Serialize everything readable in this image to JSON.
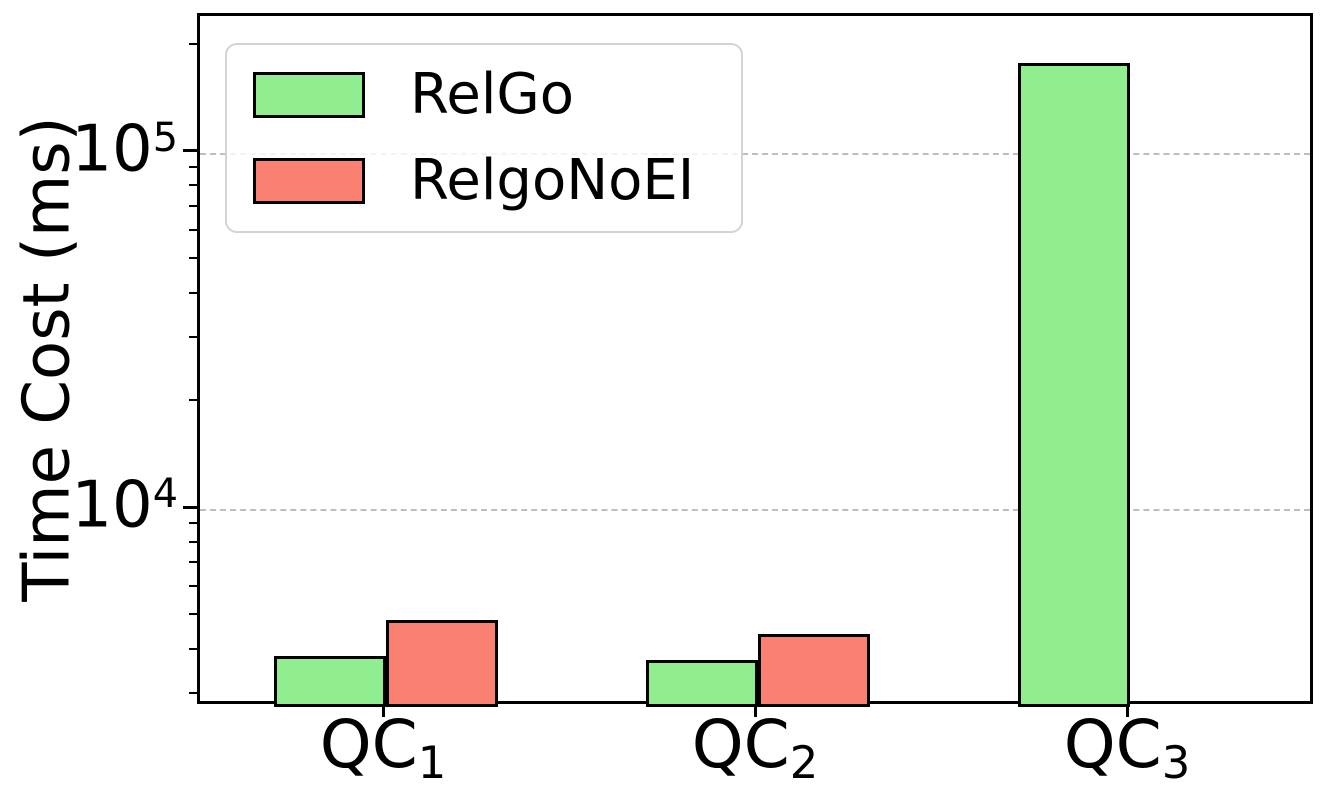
{
  "figure": {
    "background": "#ffffff",
    "axis_color": "#000000",
    "gridline_color": "#bdbdbd"
  },
  "chart_data": {
    "type": "bar",
    "title": "",
    "xlabel": "",
    "ylabel": "Time Cost (ms)",
    "yscale": "log",
    "ylim": [
      2800,
      244000
    ],
    "grid": {
      "axis": "y",
      "which": "major",
      "style": "dashed"
    },
    "categories": [
      {
        "base": "QC",
        "sub": "1"
      },
      {
        "base": "QC",
        "sub": "2"
      },
      {
        "base": "QC",
        "sub": "3"
      }
    ],
    "yticks": [
      {
        "base": "10",
        "exp": "4",
        "value": 10000
      },
      {
        "base": "10",
        "exp": "5",
        "value": 100000
      }
    ],
    "series": [
      {
        "name": "RelGo",
        "color": "#90ee90",
        "edge_color": "#000000",
        "values": [
          3900,
          3800,
          180000
        ]
      },
      {
        "name": "RelgoNoEI",
        "color": "#fa8072",
        "edge_color": "#000000",
        "values": [
          4900,
          4500,
          null
        ]
      }
    ],
    "bar_width_frac": 0.3,
    "legend": {
      "position": "upper left",
      "entries": [
        "RelGo",
        "RelgoNoEI"
      ]
    }
  }
}
